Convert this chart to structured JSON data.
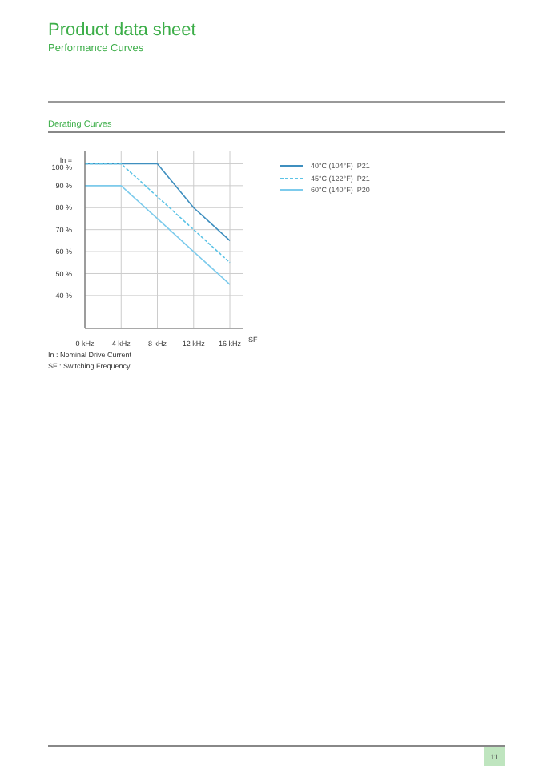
{
  "chart_data": {
    "type": "line",
    "title": "Product data sheet",
    "subtitle": "Performance Curves",
    "annotations": [
      "Derating Curves",
      "In : Nominal Drive Current",
      "SF : Switching Frequency",
      "11"
    ],
    "xlabel": "SF",
    "series": [
      {
        "name": "40°C (104°F) IP21",
        "color": "#3f8fbf",
        "x": [
          0,
          4,
          8,
          12,
          16
        ],
        "values": [
          100,
          100,
          100,
          80,
          65
        ],
        "line_style": "solid"
      },
      {
        "name": "45°C (122°F) IP21",
        "color": "#5cc3e6",
        "x": [
          0,
          4,
          8,
          12,
          16
        ],
        "values": [
          100,
          100,
          85,
          70,
          55
        ],
        "line_style": "dashed"
      },
      {
        "name": "60°C (140°F) IP20",
        "color": "#7dcbec",
        "x": [
          0,
          4,
          8,
          12,
          16
        ],
        "values": [
          90,
          90,
          75,
          60,
          45
        ],
        "line_style": "solid"
      }
    ],
    "xlim": [
      0,
      17.5
    ],
    "ylim": [
      25,
      106
    ],
    "xticks": [
      {
        "value": 0,
        "label": "0 kHz"
      },
      {
        "value": 4,
        "label": "4 kHz"
      },
      {
        "value": 8,
        "label": "8 kHz"
      },
      {
        "value": 12,
        "label": "12 kHz"
      },
      {
        "value": 16,
        "label": "16 kHz"
      }
    ],
    "yticks": [
      {
        "value": 40,
        "label": "40 %"
      },
      {
        "value": 50,
        "label": "50 %"
      },
      {
        "value": 60,
        "label": "60 %"
      },
      {
        "value": 70,
        "label": "70 %"
      },
      {
        "value": 80,
        "label": "80 %"
      },
      {
        "value": 90,
        "label": "90 %"
      },
      {
        "value": 100,
        "label": "In = 100 %"
      }
    ],
    "grid": true,
    "legend": "right",
    "marker": "none"
  }
}
